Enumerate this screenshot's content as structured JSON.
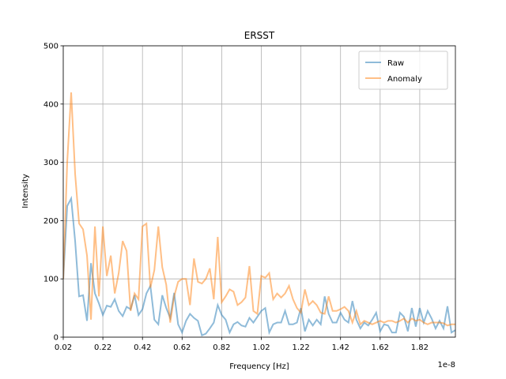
{
  "chart_data": {
    "type": "line",
    "title": "ERSST",
    "x_label": "Frequency [Hz]",
    "y_label": "Intensity",
    "x_offset_label": "1e-8",
    "x": [
      0.02,
      0.04,
      0.06,
      0.08,
      0.1,
      0.12,
      0.14,
      0.16,
      0.18,
      0.2,
      0.22,
      0.24,
      0.26,
      0.28,
      0.3,
      0.32,
      0.34,
      0.36,
      0.38,
      0.4,
      0.42,
      0.44,
      0.46,
      0.48,
      0.5,
      0.52,
      0.54,
      0.56,
      0.58,
      0.6,
      0.62,
      0.64,
      0.66,
      0.68,
      0.7,
      0.72,
      0.74,
      0.76,
      0.78,
      0.8,
      0.82,
      0.84,
      0.86,
      0.88,
      0.9,
      0.92,
      0.94,
      0.96,
      0.98,
      1.0,
      1.02,
      1.04,
      1.06,
      1.08,
      1.1,
      1.12,
      1.14,
      1.16,
      1.18,
      1.2,
      1.22,
      1.24,
      1.26,
      1.28,
      1.3,
      1.32,
      1.34,
      1.36,
      1.38,
      1.4,
      1.42,
      1.44,
      1.46,
      1.48,
      1.5,
      1.52,
      1.54,
      1.56,
      1.58,
      1.6,
      1.62,
      1.64,
      1.66,
      1.68,
      1.7,
      1.72,
      1.74,
      1.76,
      1.78,
      1.8,
      1.82,
      1.84,
      1.86,
      1.88,
      1.9,
      1.92,
      1.94,
      1.96,
      1.98,
      2.0
    ],
    "series": [
      {
        "name": "Raw",
        "color": "#1f77b4",
        "values": [
          100,
          225,
          238,
          165,
          70,
          72,
          28,
          127,
          75,
          58,
          38,
          54,
          52,
          65,
          45,
          36,
          52,
          48,
          72,
          38,
          48,
          75,
          88,
          30,
          22,
          72,
          50,
          33,
          76,
          22,
          8,
          28,
          40,
          33,
          28,
          3,
          6,
          15,
          25,
          55,
          38,
          30,
          8,
          22,
          26,
          20,
          18,
          33,
          25,
          35,
          45,
          50,
          8,
          22,
          25,
          25,
          45,
          22,
          22,
          25,
          50,
          10,
          30,
          20,
          30,
          22,
          70,
          40,
          25,
          25,
          42,
          30,
          25,
          62,
          30,
          15,
          25,
          20,
          30,
          42,
          10,
          22,
          20,
          8,
          8,
          42,
          35,
          10,
          50,
          18,
          50,
          25,
          45,
          32,
          15,
          28,
          15,
          53,
          8,
          12
        ]
      },
      {
        "name": "Anomaly",
        "color": "#ff7f0e",
        "values": [
          100,
          300,
          420,
          280,
          195,
          185,
          140,
          30,
          190,
          70,
          190,
          105,
          140,
          75,
          110,
          165,
          148,
          45,
          75,
          65,
          190,
          195,
          85,
          115,
          190,
          120,
          90,
          25,
          70,
          95,
          100,
          100,
          55,
          135,
          95,
          92,
          100,
          118,
          65,
          172,
          60,
          70,
          82,
          78,
          55,
          60,
          68,
          122,
          45,
          40,
          105,
          102,
          110,
          65,
          75,
          68,
          75,
          88,
          65,
          50,
          42,
          82,
          55,
          62,
          55,
          42,
          40,
          70,
          45,
          45,
          48,
          52,
          45,
          25,
          45,
          22,
          28,
          25,
          22,
          25,
          28,
          25,
          28,
          28,
          25,
          28,
          32,
          25,
          32,
          28,
          30,
          25,
          22,
          25,
          25,
          25,
          24,
          20,
          22,
          22
        ]
      }
    ],
    "xlim": [
      0.02,
      2.0
    ],
    "xticks": [
      0.02,
      0.22,
      0.42,
      0.62,
      0.82,
      1.02,
      1.22,
      1.42,
      1.62,
      1.82
    ],
    "ylim": [
      0,
      500
    ],
    "yticks": [
      0,
      100,
      200,
      300,
      400,
      500
    ],
    "grid": true,
    "legend": "upper right"
  }
}
